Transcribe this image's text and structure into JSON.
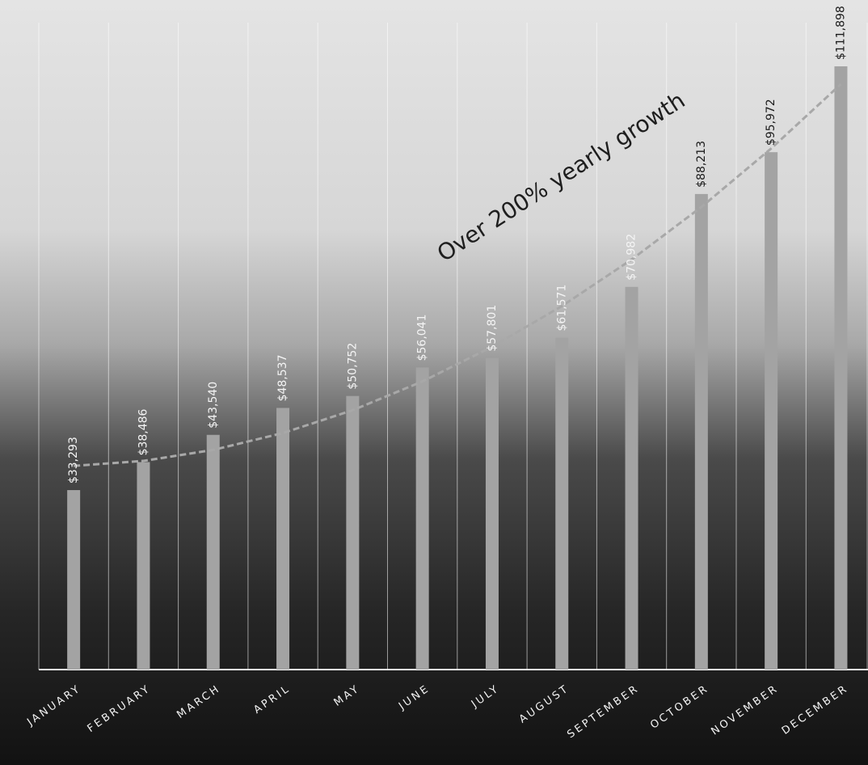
{
  "chart_data": {
    "type": "bar",
    "categories": [
      "JANUARY",
      "FEBRUARY",
      "MARCH",
      "APRIL",
      "MAY",
      "JUNE",
      "JULY",
      "AUGUST",
      "SEPTEMBER",
      "OCTOBER",
      "NOVEMBER",
      "DECEMBER"
    ],
    "values": [
      33293,
      38486,
      43540,
      48537,
      50752,
      56041,
      57801,
      61571,
      70982,
      88213,
      95972,
      111898
    ],
    "value_labels": [
      "$33,293",
      "$38,486",
      "$43,540",
      "$48,537",
      "$50,752",
      "$56,041",
      "$57,801",
      "$61,571",
      "$70,982",
      "$88,213",
      "$95,972",
      "$111,898"
    ],
    "color": "#a3a3a3",
    "ylim": [
      0,
      120000
    ],
    "annotation": "Over 200% yearly growth"
  }
}
